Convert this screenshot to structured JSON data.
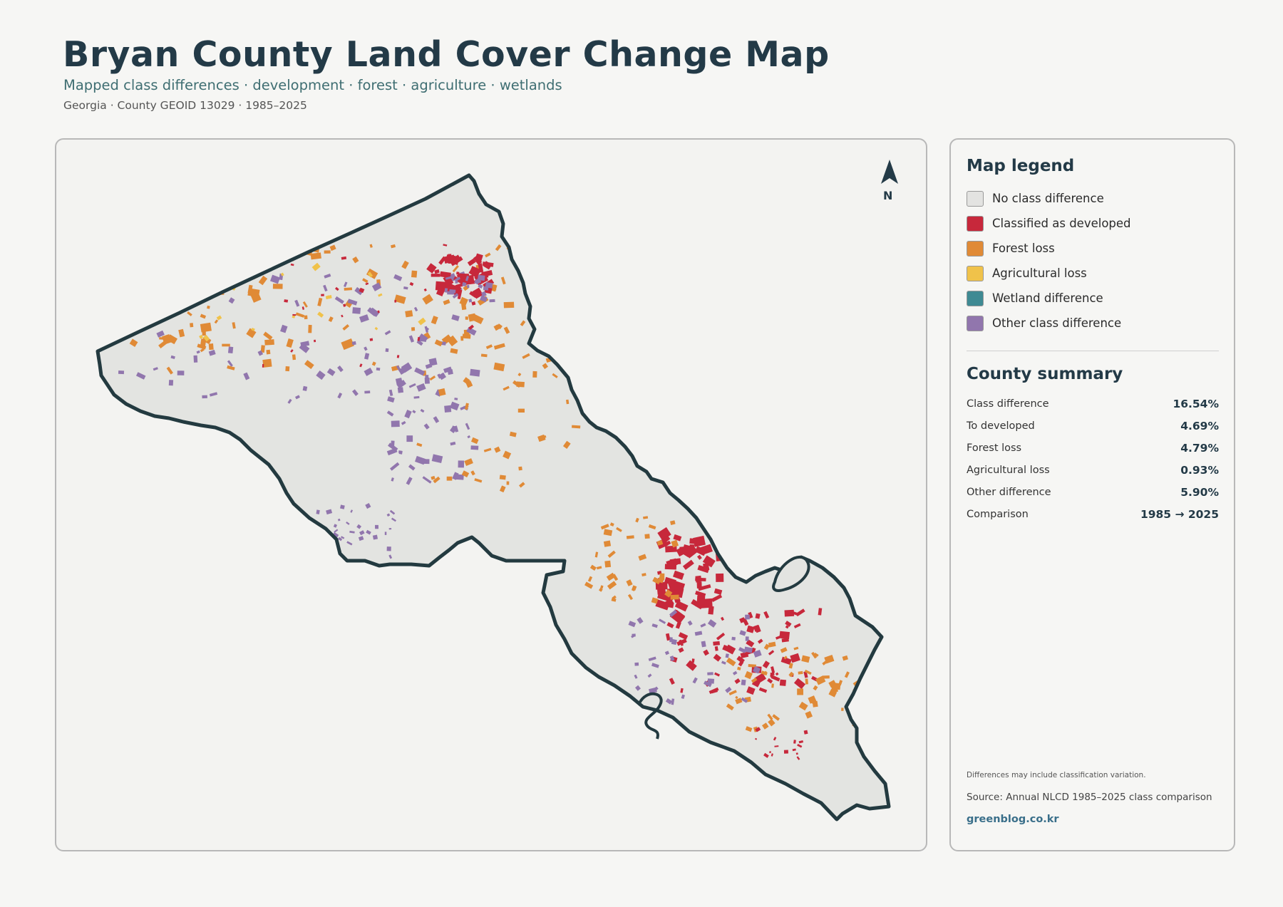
{
  "header": {
    "title": "Bryan County Land Cover Change Map",
    "subtitle": "Mapped class differences · development · forest · agriculture · wetlands",
    "meta": "Georgia · County GEOID 13029 · 1985–2025"
  },
  "map": {
    "north_label": "N",
    "colors": {
      "county_fill": "#e3e4e1",
      "county_outline": "#233a40",
      "developed": "#c7283b",
      "forest_loss": "#e08a36",
      "agricultural_loss": "#f0c24a",
      "wetland": "#3f8a93",
      "other": "#9176ad"
    }
  },
  "legend": {
    "title": "Map legend",
    "items": [
      {
        "label": "No class difference",
        "color": "#e3e3e1"
      },
      {
        "label": "Classified as developed",
        "color": "#c7283b"
      },
      {
        "label": "Forest loss",
        "color": "#e08a36"
      },
      {
        "label": "Agricultural loss",
        "color": "#f0c24a"
      },
      {
        "label": "Wetland difference",
        "color": "#3f8a93"
      },
      {
        "label": "Other class difference",
        "color": "#9176ad"
      }
    ]
  },
  "summary": {
    "title": "County summary",
    "rows": [
      {
        "label": "Class difference",
        "value": "16.54%"
      },
      {
        "label": "To developed",
        "value": "4.69%"
      },
      {
        "label": "Forest loss",
        "value": "4.79%"
      },
      {
        "label": "Agricultural loss",
        "value": "0.93%"
      },
      {
        "label": "Other difference",
        "value": "5.90%"
      },
      {
        "label": "Comparison",
        "value": "1985 → 2025"
      }
    ]
  },
  "footer": {
    "note": "Differences may include classification variation.",
    "source": "Source: Annual NLCD 1985–2025 class comparison",
    "brand": "greenblog.co.kr"
  }
}
